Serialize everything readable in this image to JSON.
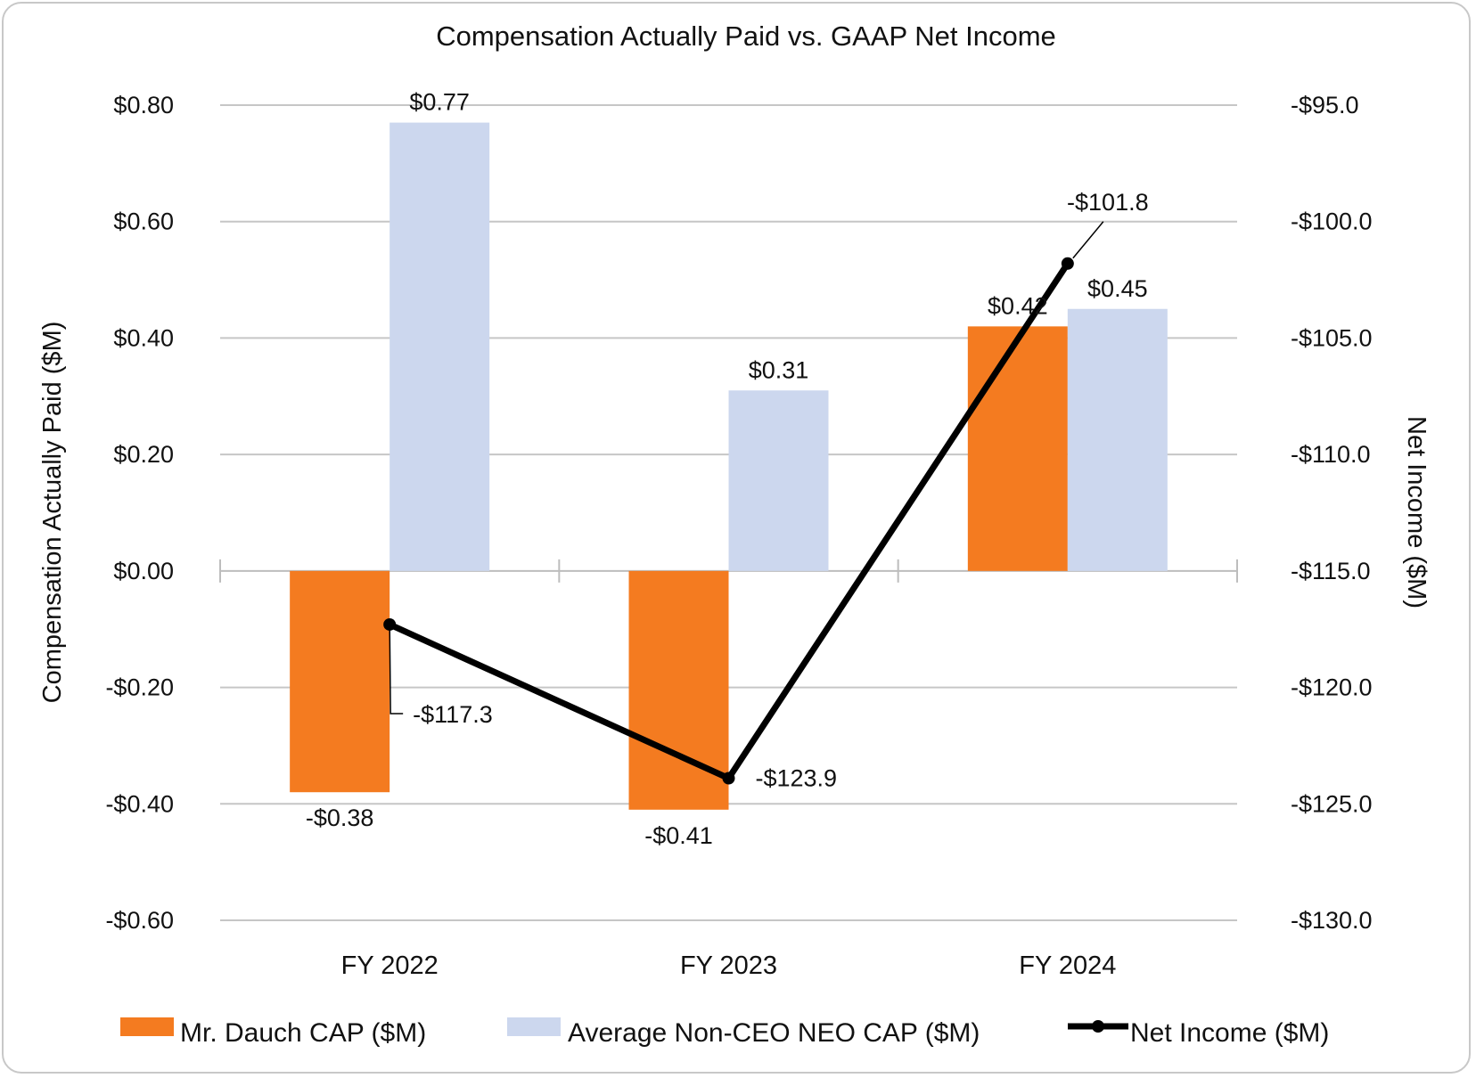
{
  "chart_data": {
    "type": "bar+line",
    "title": "Compensation Actually Paid vs. GAAP Net Income",
    "categories": [
      "FY 2022",
      "FY 2023",
      "FY 2024"
    ],
    "ylabel": "Compensation Actually Paid ($M)",
    "y2label": "Net Income ($M)",
    "ylim": [
      -0.6,
      0.8
    ],
    "y2lim": [
      -130,
      -95
    ],
    "yticks": [
      "$0.80",
      "$0.60",
      "$0.40",
      "$0.20",
      "$0.00",
      "-$0.20",
      "-$0.40",
      "-$0.60"
    ],
    "y2ticks": [
      "-$95.0",
      "-$100.0",
      "-$105.0",
      "-$110.0",
      "-$115.0",
      "-$120.0",
      "-$125.0",
      "-$130.0"
    ],
    "grid": true,
    "legend": "bottom",
    "series": [
      {
        "name": "Mr. Dauch CAP ($M)",
        "type": "bar",
        "axis": "left",
        "color": "#F47B20",
        "values": [
          -0.38,
          -0.41,
          0.42
        ],
        "labels": [
          "-$0.38",
          "-$0.41",
          "$0.42"
        ]
      },
      {
        "name": "Average Non-CEO NEO CAP ($M)",
        "type": "bar",
        "axis": "left",
        "color": "#CCD7EE",
        "values": [
          0.77,
          0.31,
          0.45
        ],
        "labels": [
          "$0.77",
          "$0.31",
          "$0.45"
        ]
      },
      {
        "name": "Net Income ($M)",
        "type": "line",
        "axis": "right",
        "color": "#000000",
        "values": [
          -117.3,
          -123.9,
          -101.8
        ],
        "labels": [
          "-$117.3",
          "-$123.9",
          "-$101.8"
        ]
      }
    ]
  }
}
